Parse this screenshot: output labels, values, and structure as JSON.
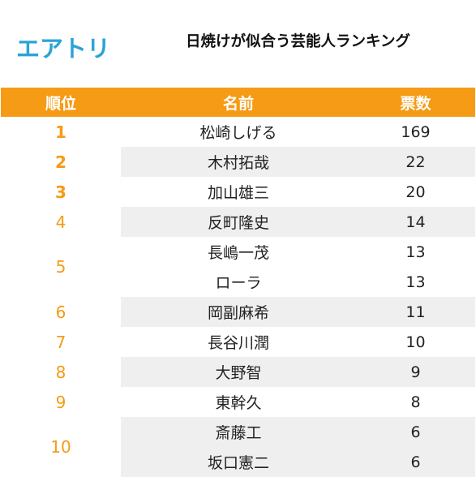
{
  "header": {
    "logo": "エアトリ",
    "title": "日焼けが似合う芸能人ランキング"
  },
  "chart_data": {
    "type": "table",
    "title": "日焼けが似合う芸能人ランキング",
    "columns": [
      "順位",
      "名前",
      "票数"
    ],
    "rows": [
      {
        "rank": "1",
        "name": "松崎しげる",
        "votes": 169
      },
      {
        "rank": "2",
        "name": "木村拓哉",
        "votes": 22
      },
      {
        "rank": "3",
        "name": "加山雄三",
        "votes": 20
      },
      {
        "rank": "4",
        "name": "反町隆史",
        "votes": 14
      },
      {
        "rank": "5",
        "name": "長嶋一茂",
        "votes": 13
      },
      {
        "rank": "5",
        "name": "ローラ",
        "votes": 13
      },
      {
        "rank": "6",
        "name": "岡副麻希",
        "votes": 11
      },
      {
        "rank": "7",
        "name": "長谷川潤",
        "votes": 10
      },
      {
        "rank": "8",
        "name": "大野智",
        "votes": 9
      },
      {
        "rank": "9",
        "name": "東幹久",
        "votes": 8
      },
      {
        "rank": "10",
        "name": "斎藤工",
        "votes": 6
      },
      {
        "rank": "10",
        "name": "坂口憲二",
        "votes": 6
      }
    ]
  }
}
